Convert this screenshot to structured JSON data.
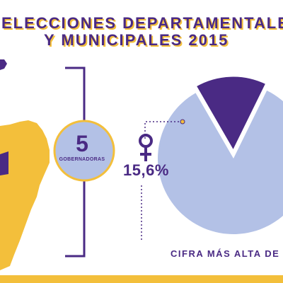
{
  "title": {
    "line1": "ELECCIONES DEPARTAMENTALES",
    "line2": "Y MUNICIPALES 2015"
  },
  "governors": {
    "number": "5",
    "label": "GOBERNADORAS"
  },
  "percent_label": "15,6%",
  "footer_text": "CIFRA MÁS ALTA DE L",
  "colors": {
    "purple": "#4a2a84",
    "yellow": "#f3bf3b",
    "light_blue": "#b3c1e6",
    "background": "#ffffff"
  },
  "icons": {
    "female": "female-symbol-icon"
  },
  "chart_data": {
    "type": "pie",
    "values": [
      15.6,
      84.4
    ],
    "highlight_index": 0,
    "colors": [
      "#4a2a84",
      "#b3c1e6"
    ],
    "data_labels": [
      "15,6%"
    ]
  }
}
